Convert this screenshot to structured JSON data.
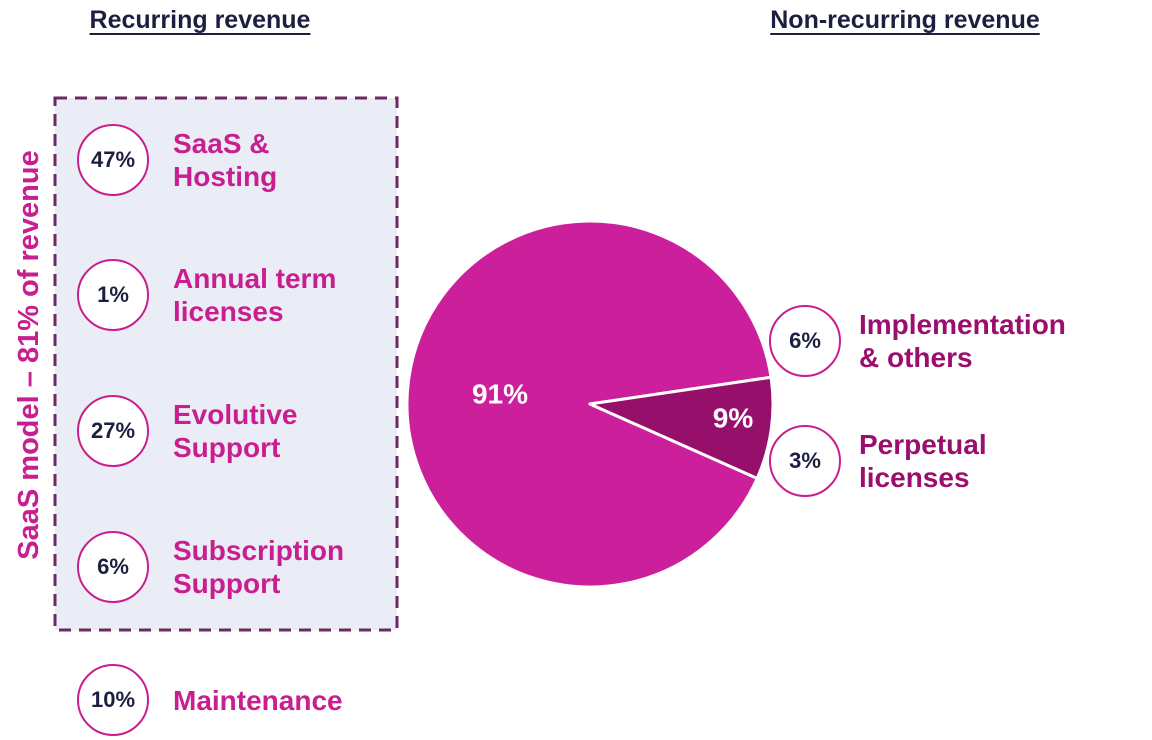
{
  "recurring": {
    "title": "Recurring revenue",
    "group_label": "SaaS model – 81% of revenue",
    "items": [
      {
        "share": "47%",
        "label": "SaaS & Hosting"
      },
      {
        "share": "1%",
        "label": "Annual term licenses"
      },
      {
        "share": "27%",
        "label": "Evolutive Support"
      },
      {
        "share": "6%",
        "label": "Subscription Support"
      },
      {
        "share": "10%",
        "label": "Maintenance"
      }
    ]
  },
  "non_recurring": {
    "title": "Non-recurring revenue",
    "items": [
      {
        "share": "6%",
        "label": "Implementation & others"
      },
      {
        "share": "3%",
        "label": "Perpetual licenses"
      }
    ]
  },
  "chart_data": {
    "type": "pie",
    "categories": [
      null,
      null
    ],
    "values": [
      91,
      9
    ],
    "value_labels": [
      "91%",
      "9%"
    ],
    "colors": [
      "#cc1f9b",
      "#960f6b"
    ]
  }
}
